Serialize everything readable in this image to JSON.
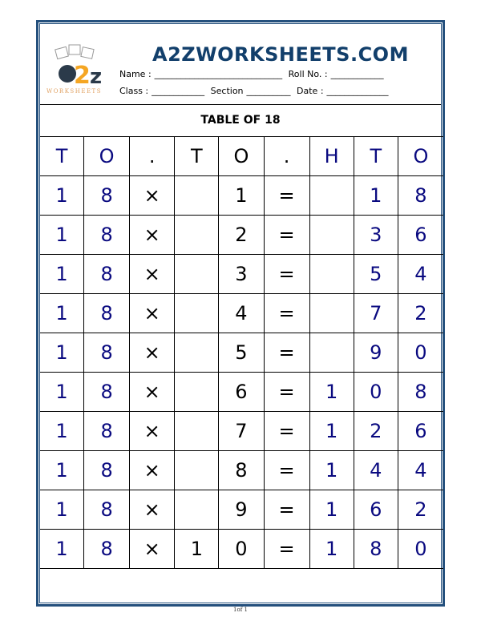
{
  "header": {
    "logo_text": "a2z WORKSHEETS",
    "site_title": "A2ZWORKSHEETS.COM",
    "name_label": "Name :",
    "roll_label": "Roll No. :",
    "class_label": "Class :",
    "section_label": "Section",
    "date_label": "Date :"
  },
  "title": "TABLE OF 18",
  "columns": [
    "T",
    "O",
    ".",
    "T",
    "O",
    ".",
    "H",
    "T",
    "O"
  ],
  "column_colors": [
    "navy",
    "navy",
    "black",
    "black",
    "black",
    "black",
    "navy",
    "navy",
    "navy"
  ],
  "rows": [
    [
      "1",
      "8",
      "×",
      "",
      "1",
      "=",
      "",
      "1",
      "8"
    ],
    [
      "1",
      "8",
      "×",
      "",
      "2",
      "=",
      "",
      "3",
      "6"
    ],
    [
      "1",
      "8",
      "×",
      "",
      "3",
      "=",
      "",
      "5",
      "4"
    ],
    [
      "1",
      "8",
      "×",
      "",
      "4",
      "=",
      "",
      "7",
      "2"
    ],
    [
      "1",
      "8",
      "×",
      "",
      "5",
      "=",
      "",
      "9",
      "0"
    ],
    [
      "1",
      "8",
      "×",
      "",
      "6",
      "=",
      "1",
      "0",
      "8"
    ],
    [
      "1",
      "8",
      "×",
      "",
      "7",
      "=",
      "1",
      "2",
      "6"
    ],
    [
      "1",
      "8",
      "×",
      "",
      "8",
      "=",
      "1",
      "4",
      "4"
    ],
    [
      "1",
      "8",
      "×",
      "",
      "9",
      "=",
      "1",
      "6",
      "2"
    ],
    [
      "1",
      "8",
      "×",
      "1",
      "0",
      "=",
      "1",
      "8",
      "0"
    ]
  ],
  "footer": "1of 1",
  "colors": {
    "border": "#24507d",
    "title": "#123f6b",
    "digits": "#0a0a80"
  }
}
